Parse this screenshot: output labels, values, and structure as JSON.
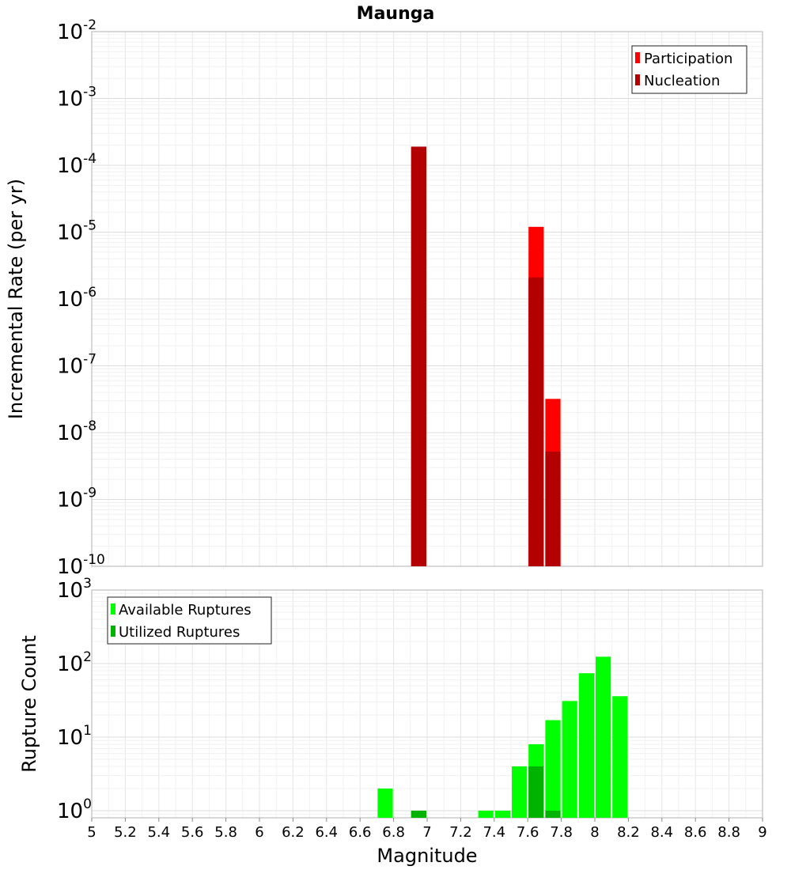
{
  "chart_data": [
    {
      "type": "bar",
      "title": "Maunga",
      "xlabel": "",
      "ylabel": "Incremental Rate (per yr)",
      "yscale": "log",
      "xlim": [
        5,
        9
      ],
      "ylim": [
        1e-10,
        0.01
      ],
      "y_tick_exponents": [
        "-10",
        "-9",
        "-8",
        "-7",
        "-6",
        "-5",
        "-4",
        "-3",
        "-2"
      ],
      "bin_width": 0.1,
      "legend_position": "top-right",
      "series": [
        {
          "name": "Participation",
          "color": "#ff0000",
          "x": [
            6.95,
            7.65,
            7.75
          ],
          "values": [
            0.00019,
            1.2e-05,
            3.2e-08
          ]
        },
        {
          "name": "Nucleation",
          "color": "#b30000",
          "x": [
            6.95,
            7.65,
            7.75
          ],
          "values": [
            0.00019,
            2.1e-06,
            5.2e-09
          ]
        }
      ]
    },
    {
      "type": "bar",
      "title": "",
      "xlabel": "Magnitude",
      "ylabel": "Rupture Count",
      "yscale": "log",
      "xlim": [
        5,
        9
      ],
      "ylim": [
        0.8,
        1000
      ],
      "y_tick_exponents": [
        "0",
        "1",
        "2",
        "3"
      ],
      "x_ticks": [
        "5",
        "5.2",
        "5.4",
        "5.6",
        "5.8",
        "6",
        "6.2",
        "6.4",
        "6.6",
        "6.8",
        "7",
        "7.2",
        "7.4",
        "7.6",
        "7.8",
        "8",
        "8.2",
        "8.4",
        "8.6",
        "8.8",
        "9"
      ],
      "bin_width": 0.1,
      "legend_position": "top-left",
      "series": [
        {
          "name": "Available Ruptures",
          "color": "#00ff00",
          "x": [
            6.75,
            6.95,
            7.35,
            7.45,
            7.55,
            7.65,
            7.75,
            7.85,
            7.95,
            8.05,
            8.15
          ],
          "values": [
            2,
            1,
            1,
            1,
            4,
            8,
            17,
            31,
            74,
            124,
            36
          ]
        },
        {
          "name": "Utilized Ruptures",
          "color": "#00b300",
          "x": [
            6.95,
            7.65,
            7.75
          ],
          "values": [
            1,
            4,
            1
          ]
        }
      ]
    }
  ]
}
